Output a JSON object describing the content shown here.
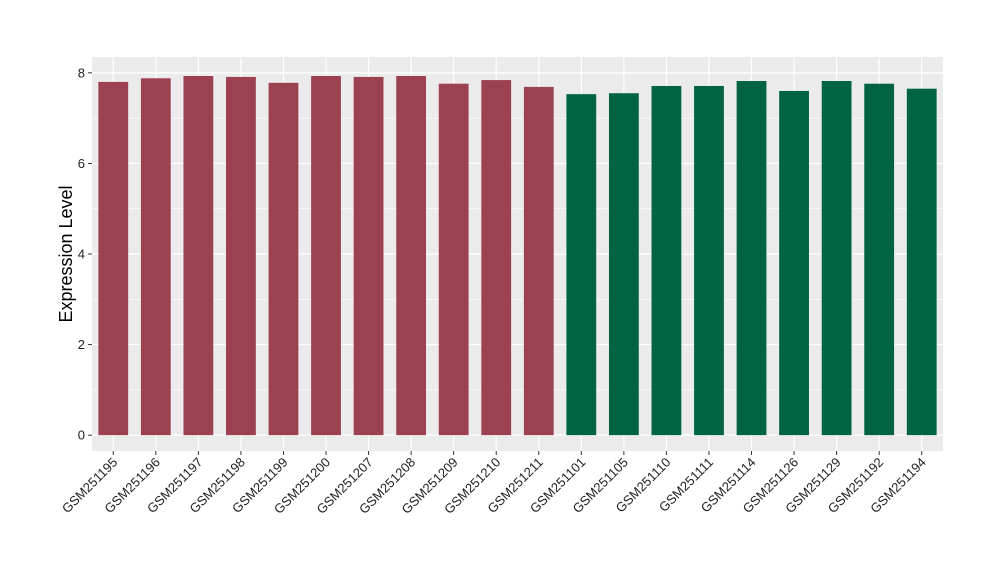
{
  "chart_data": {
    "type": "bar",
    "title": "",
    "xlabel": "",
    "ylabel": "Expression Level",
    "ylim": [
      -0.35,
      8.35
    ],
    "yticks": [
      0,
      2,
      4,
      6,
      8
    ],
    "grid": true,
    "categories": [
      "GSM251195",
      "GSM251196",
      "GSM251197",
      "GSM251198",
      "GSM251199",
      "GSM251200",
      "GSM251207",
      "GSM251208",
      "GSM251209",
      "GSM251210",
      "GSM251211",
      "GSM251101",
      "GSM251105",
      "GSM251110",
      "GSM251111",
      "GSM251114",
      "GSM251126",
      "GSM251129",
      "GSM251192",
      "GSM251194"
    ],
    "values": [
      7.8,
      7.88,
      7.93,
      7.91,
      7.78,
      7.93,
      7.91,
      7.93,
      7.76,
      7.84,
      7.69,
      7.53,
      7.55,
      7.71,
      7.71,
      7.82,
      7.6,
      7.82,
      7.76,
      7.65
    ],
    "groups": [
      0,
      0,
      0,
      0,
      0,
      0,
      0,
      0,
      0,
      0,
      0,
      1,
      1,
      1,
      1,
      1,
      1,
      1,
      1,
      1
    ],
    "group_colors": [
      "#9b4150",
      "#006443"
    ],
    "panel_background": "#ebebeb",
    "grid_color": "#ffffff"
  }
}
